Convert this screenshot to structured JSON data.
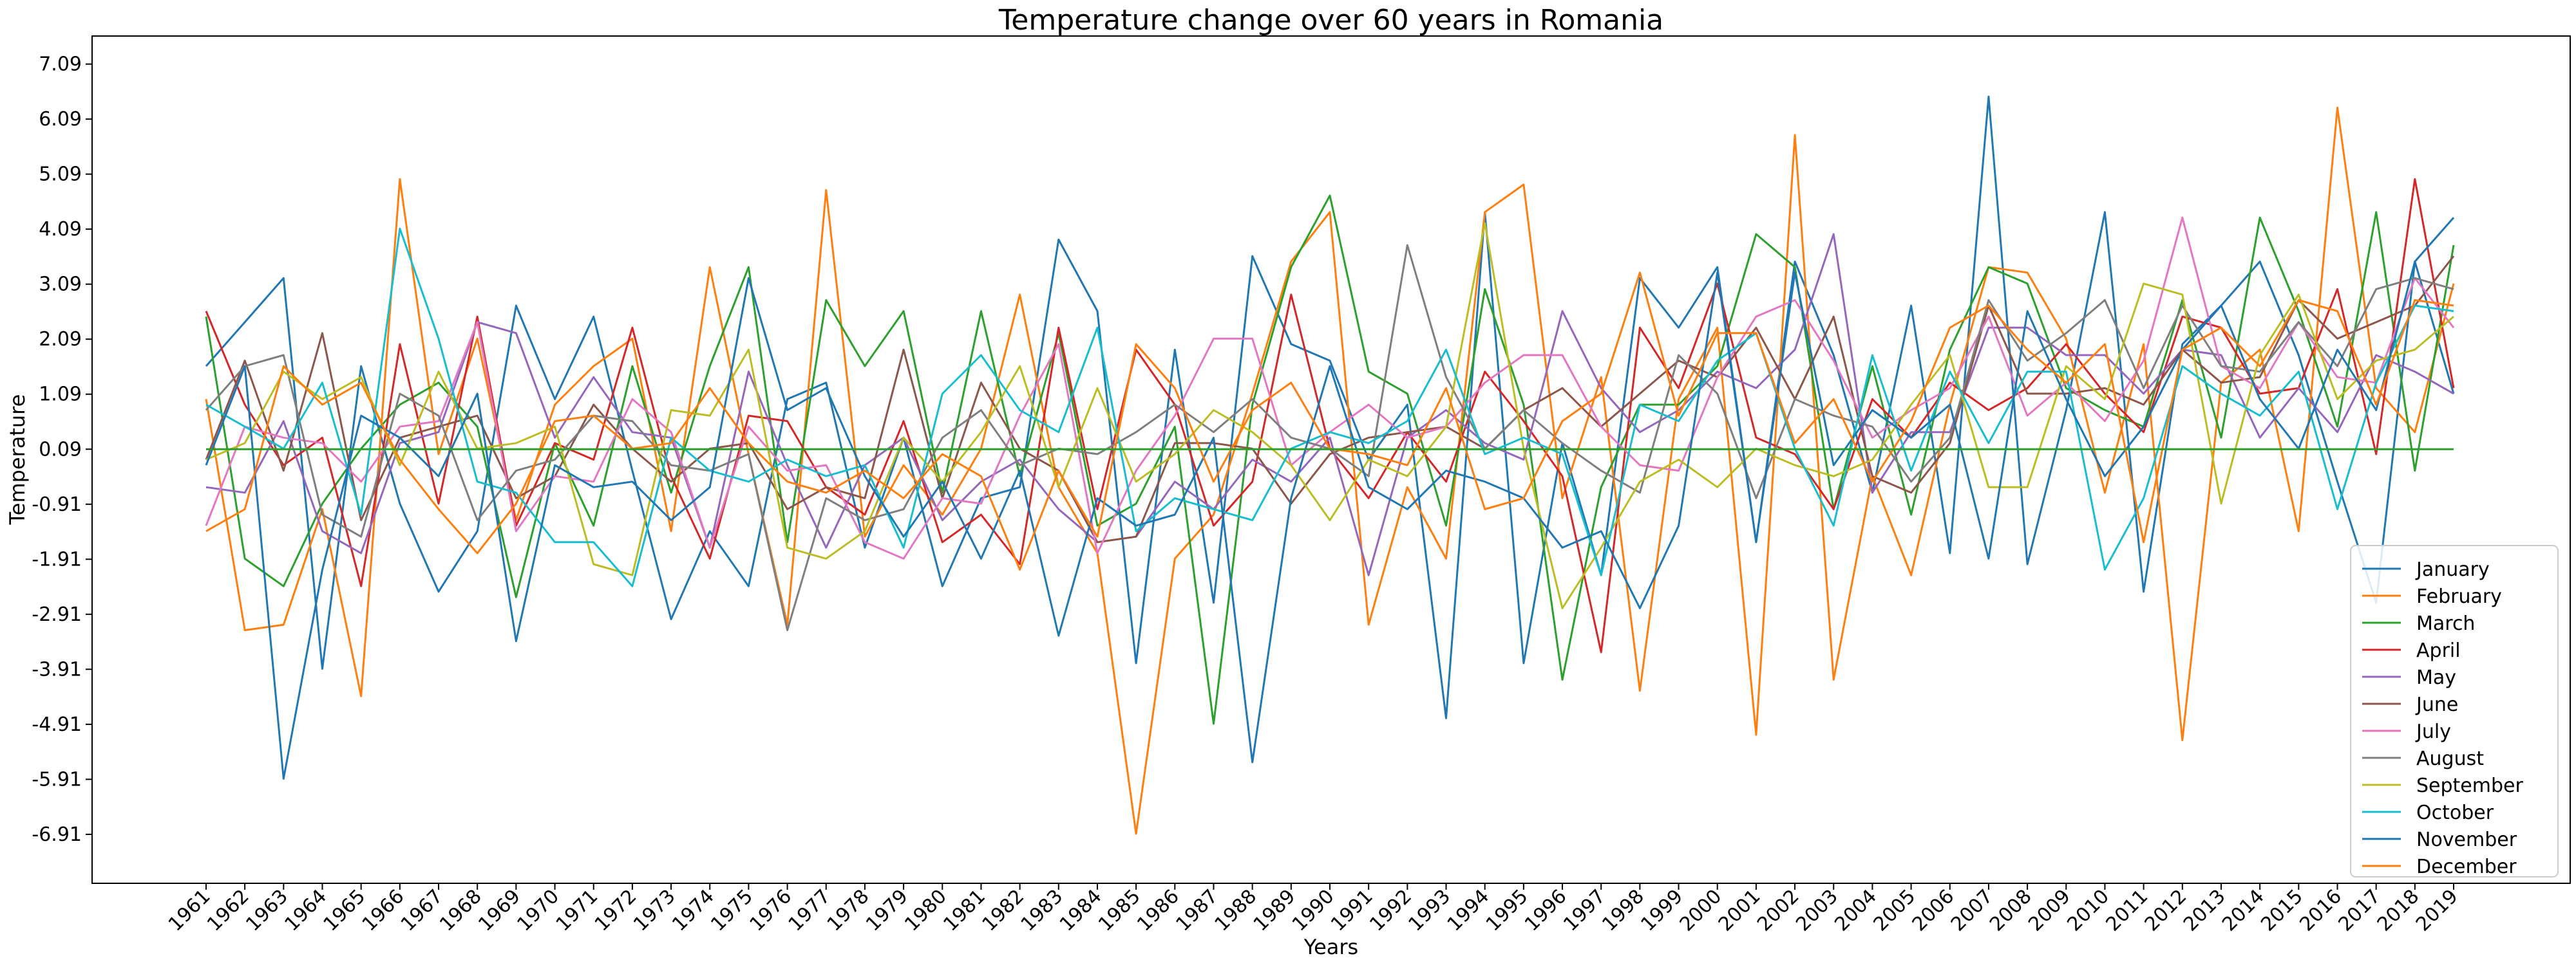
{
  "chart_data": {
    "type": "line",
    "title": "Temperature change over 60 years in Romania",
    "xlabel": "Years",
    "ylabel": "Temperature",
    "yticks": [
      "-6.91",
      "-5.91",
      "-4.91",
      "-3.91",
      "-2.91",
      "-1.91",
      "-0.91",
      "0.09",
      "1.09",
      "2.09",
      "3.09",
      "4.09",
      "5.09",
      "6.09",
      "7.09"
    ],
    "ylim": [
      -7.8,
      7.6
    ],
    "grid": false,
    "legend_position": "bottom-right",
    "x": [
      "1961",
      "1962",
      "1963",
      "1964",
      "1965",
      "1966",
      "1967",
      "1968",
      "1969",
      "1970",
      "1971",
      "1972",
      "1973",
      "1974",
      "1975",
      "1976",
      "1977",
      "1978",
      "1979",
      "1980",
      "1981",
      "1982",
      "1983",
      "1984",
      "1985",
      "1986",
      "1987",
      "1988",
      "1989",
      "1990",
      "1991",
      "1992",
      "1993",
      "1994",
      "1995",
      "1996",
      "1997",
      "1998",
      "1999",
      "2000",
      "2001",
      "2002",
      "2003",
      "2004",
      "2005",
      "2006",
      "2007",
      "2008",
      "2009",
      "2010",
      "2011",
      "2012",
      "2013",
      "2014",
      "2015",
      "2016",
      "2017",
      "2018",
      "2019"
    ],
    "series": [
      {
        "name": "January",
        "color": "#1f77b4",
        "values": [
          1.6,
          2.4,
          3.2,
          -3.9,
          1.6,
          -0.9,
          -2.5,
          -1.4,
          2.7,
          1.0,
          2.5,
          -0.3,
          -3.0,
          -1.4,
          -2.4,
          1.0,
          1.3,
          -1.7,
          0.3,
          -2.4,
          -0.8,
          -0.6,
          3.9,
          2.6,
          -3.8,
          1.9,
          -2.7,
          3.6,
          2.0,
          1.7,
          -0.1,
          0.9,
          -4.8,
          4.4,
          -3.8,
          0.2,
          -2.2,
          3.2,
          2.3,
          3.4,
          -1.6,
          3.5,
          1.8,
          -0.7,
          2.7,
          -1.8,
          6.5,
          -2.0,
          0.8,
          4.4,
          -2.5,
          2.0,
          2.7,
          3.5,
          1.8,
          -0.5,
          -2.7,
          3.5,
          1.1
        ]
      },
      {
        "name": "February",
        "color": "#ff7f0e",
        "values": [
          1.0,
          -3.2,
          -3.1,
          -1.0,
          -4.4,
          5.0,
          0.0,
          2.1,
          -1.2,
          0.9,
          1.6,
          2.1,
          -1.4,
          3.4,
          0.0,
          -3.1,
          4.8,
          -1.5,
          -0.2,
          -1.1,
          0.1,
          2.9,
          -0.6,
          -1.8,
          -6.9,
          -1.9,
          -1.1,
          1.1,
          3.5,
          4.4,
          -3.1,
          -0.6,
          -1.9,
          4.4,
          4.9,
          -0.8,
          1.4,
          -4.3,
          1.0,
          2.3,
          -5.1,
          5.8,
          -4.1,
          -0.4,
          -2.2,
          0.9,
          3.4,
          3.3,
          2.1,
          -0.7,
          2.0,
          -5.2,
          1.3,
          1.9,
          -1.4,
          6.3,
          1.2,
          0.4,
          3.1
        ]
      },
      {
        "name": "March",
        "color": "#2ca02c",
        "values": [
          2.5,
          -1.9,
          -2.4,
          -0.9,
          0.1,
          0.9,
          1.3,
          0.5,
          -2.6,
          0.2,
          -1.3,
          1.6,
          -0.7,
          1.6,
          3.4,
          -1.6,
          2.8,
          1.6,
          2.6,
          -0.7,
          2.6,
          -0.4,
          2.2,
          -1.3,
          -0.9,
          0.5,
          -4.9,
          0.9,
          3.4,
          4.7,
          1.5,
          1.1,
          -1.3,
          3.0,
          0.9,
          -4.1,
          -0.6,
          0.9,
          0.9,
          1.6,
          4.0,
          3.4,
          -1.0,
          1.6,
          -1.1,
          1.9,
          3.4,
          3.1,
          1.2,
          0.8,
          0.5,
          2.8,
          0.3,
          4.3,
          2.6,
          0.5,
          4.4,
          -0.3,
          3.8
        ]
      },
      {
        "name": "April",
        "color": "#d62728",
        "values": [
          2.6,
          0.9,
          -0.2,
          0.3,
          -2.4,
          2.0,
          -0.9,
          2.5,
          -1.3,
          0.2,
          -0.1,
          2.3,
          -0.4,
          -1.9,
          0.7,
          0.6,
          -0.6,
          -1.1,
          0.6,
          -1.6,
          -1.1,
          -2.0,
          2.3,
          -1.0,
          1.9,
          0.9,
          -1.3,
          -0.5,
          2.9,
          0.1,
          -0.8,
          0.4,
          -0.5,
          1.5,
          0.6,
          -0.4,
          -3.6,
          2.3,
          1.2,
          3.1,
          0.3,
          0.0,
          -1.0,
          1.0,
          0.3,
          1.3,
          0.8,
          1.2,
          2.0,
          1.1,
          0.4,
          2.5,
          2.3,
          1.1,
          1.2,
          3.0,
          0.0,
          5.0,
          1.2
        ]
      },
      {
        "name": "May",
        "color": "#9467bd",
        "values": [
          -0.6,
          -0.7,
          0.6,
          -1.4,
          -1.8,
          0.2,
          0.4,
          2.4,
          2.2,
          0.3,
          1.4,
          0.4,
          0.3,
          -1.7,
          1.5,
          -0.2,
          -1.7,
          -0.2,
          0.3,
          -1.2,
          -0.5,
          -0.1,
          -1.0,
          -1.6,
          -1.5,
          -0.5,
          -1.0,
          -0.1,
          -0.5,
          0.3,
          -2.2,
          0.3,
          0.8,
          0.2,
          -0.1,
          2.6,
          1.2,
          0.4,
          0.8,
          1.5,
          1.2,
          1.9,
          4.0,
          -0.7,
          0.4,
          0.4,
          2.3,
          2.3,
          1.8,
          1.8,
          1.1,
          1.9,
          1.8,
          0.3,
          1.2,
          0.4,
          1.8,
          1.5,
          1.1
        ]
      },
      {
        "name": "June",
        "color": "#8c564b",
        "values": [
          -0.1,
          1.7,
          -0.3,
          2.2,
          -1.2,
          0.3,
          0.5,
          0.7,
          -0.8,
          -0.4,
          0.9,
          0.1,
          -0.5,
          0.1,
          0.2,
          -1.0,
          -0.6,
          -0.8,
          1.9,
          -0.8,
          1.3,
          0.1,
          -0.3,
          -1.6,
          -1.5,
          0.2,
          0.2,
          0.1,
          -0.9,
          0.0,
          0.3,
          0.4,
          0.5,
          0.1,
          0.8,
          1.2,
          0.5,
          1.1,
          1.7,
          1.4,
          2.3,
          1.0,
          2.5,
          -0.4,
          -0.7,
          0.2,
          2.7,
          1.1,
          1.1,
          1.2,
          0.9,
          1.9,
          1.3,
          1.4,
          2.8,
          2.1,
          2.4,
          2.7,
          3.6
        ]
      },
      {
        "name": "July",
        "color": "#e377c2",
        "values": [
          -1.3,
          0.5,
          0.3,
          0.2,
          -0.5,
          0.5,
          0.6,
          2.4,
          -1.4,
          -0.4,
          -0.5,
          1.0,
          0.4,
          -1.7,
          0.5,
          -0.3,
          -0.2,
          -1.6,
          -1.9,
          -0.8,
          -0.9,
          0.7,
          2.0,
          -1.8,
          -0.3,
          0.7,
          2.1,
          2.1,
          -0.2,
          0.4,
          0.9,
          0.3,
          0.5,
          1.3,
          1.8,
          1.8,
          0.5,
          -0.2,
          -0.3,
          1.4,
          2.5,
          2.8,
          1.7,
          0.3,
          0.8,
          1.2,
          2.5,
          0.7,
          1.3,
          0.6,
          1.7,
          4.3,
          1.6,
          1.2,
          2.4,
          1.4,
          1.3,
          3.2,
          2.3
        ]
      },
      {
        "name": "August",
        "color": "#7f7f7f",
        "values": [
          0.8,
          1.6,
          1.8,
          -1.1,
          -1.5,
          1.1,
          0.7,
          -1.2,
          -0.3,
          -0.1,
          0.7,
          0.6,
          -0.2,
          -0.3,
          0.0,
          -3.2,
          -0.8,
          -1.2,
          -1.0,
          0.3,
          0.8,
          -0.2,
          0.1,
          0.0,
          0.4,
          0.9,
          0.4,
          1.0,
          0.3,
          0.1,
          -0.4,
          3.8,
          1.4,
          0.1,
          0.8,
          0.2,
          -0.3,
          -0.7,
          1.8,
          1.1,
          -0.8,
          1.0,
          0.7,
          0.5,
          -0.5,
          0.3,
          2.8,
          1.7,
          2.2,
          2.8,
          1.2,
          2.7,
          1.6,
          1.5,
          2.4,
          1.6,
          3.0,
          3.2,
          3.0
        ]
      },
      {
        "name": "September",
        "color": "#bcbd22",
        "values": [
          -0.1,
          0.2,
          1.5,
          1.0,
          1.4,
          -0.2,
          1.5,
          0.1,
          0.2,
          0.5,
          -2.0,
          -2.2,
          0.8,
          0.7,
          1.9,
          -1.7,
          -1.9,
          -1.4,
          0.3,
          -0.5,
          0.4,
          1.6,
          -0.6,
          1.2,
          -0.5,
          0.0,
          0.8,
          0.4,
          -0.2,
          -1.2,
          -0.1,
          -0.4,
          0.5,
          4.2,
          0.1,
          -2.8,
          -1.7,
          -0.5,
          -0.1,
          -0.6,
          0.1,
          -0.2,
          -0.4,
          -0.1,
          0.9,
          1.8,
          -0.6,
          -0.6,
          1.6,
          1.0,
          3.1,
          2.9,
          -0.9,
          1.8,
          2.9,
          1.0,
          1.7,
          1.9,
          2.5
        ]
      },
      {
        "name": "October",
        "color": "#17becf",
        "values": [
          0.9,
          0.5,
          0.1,
          1.3,
          -1.1,
          4.1,
          2.1,
          -0.5,
          -0.7,
          -1.6,
          -1.6,
          -2.4,
          0.3,
          -0.3,
          -0.5,
          -0.1,
          -0.4,
          -0.2,
          -1.7,
          1.1,
          1.8,
          0.8,
          0.4,
          2.3,
          -1.4,
          -0.8,
          -1.0,
          -1.2,
          0.1,
          0.4,
          0.2,
          0.6,
          1.9,
          0.0,
          0.3,
          0.0,
          -2.2,
          0.9,
          0.6,
          1.7,
          2.2,
          0.1,
          -1.3,
          1.8,
          -0.3,
          1.5,
          0.2,
          1.5,
          1.5,
          -2.1,
          -0.8,
          1.6,
          1.1,
          0.7,
          1.5,
          -1.0,
          1.3,
          2.7,
          2.6
        ]
      },
      {
        "name": "November",
        "color": "#1f77b4",
        "values": [
          -0.2,
          1.6,
          -5.9,
          -2.1,
          0.7,
          0.3,
          -0.4,
          1.1,
          -3.4,
          -0.2,
          -0.6,
          -0.5,
          -1.2,
          -0.6,
          3.2,
          0.8,
          1.2,
          -0.4,
          -1.5,
          -0.5,
          -1.9,
          -0.3,
          -3.3,
          -0.8,
          -1.3,
          -1.1,
          0.3,
          -5.6,
          -0.8,
          1.6,
          -0.6,
          -1.0,
          -0.3,
          -0.5,
          -0.8,
          -1.7,
          -1.4,
          -2.8,
          -1.3,
          3.3,
          -1.6,
          3.3,
          -0.2,
          0.8,
          0.3,
          0.9,
          -1.9,
          2.6,
          1.0,
          -0.4,
          0.5,
          1.9,
          2.7,
          1.0,
          0.1,
          1.9,
          0.8,
          3.5,
          4.3
        ]
      },
      {
        "name": "December",
        "color": "#ff7f0e",
        "values": [
          -1.4,
          -1.0,
          1.6,
          0.9,
          1.3,
          -0.1,
          -1.0,
          -1.8,
          -0.9,
          0.6,
          0.7,
          0.1,
          0.2,
          1.2,
          0.2,
          -0.5,
          -0.7,
          -0.3,
          -0.8,
          0.0,
          -0.4,
          -2.1,
          -0.3,
          -1.5,
          2.0,
          1.2,
          -0.5,
          0.8,
          1.3,
          0.1,
          0.0,
          -0.2,
          1.2,
          -1.0,
          -0.8,
          0.6,
          1.1,
          3.3,
          0.7,
          2.2,
          2.2,
          0.2,
          1.0,
          -0.5,
          0.6,
          2.3,
          2.7,
          1.9,
          1.3,
          2.0,
          -1.6,
          1.9,
          2.3,
          1.6,
          2.8,
          2.6,
          0.9,
          2.8,
          2.7
        ]
      },
      {
        "name": "",
        "color": "#2ca02c",
        "values": [
          0.09,
          0.09,
          0.09,
          0.09,
          0.09,
          0.09,
          0.09,
          0.09,
          0.09,
          0.09,
          0.09,
          0.09,
          0.09,
          0.09,
          0.09,
          0.09,
          0.09,
          0.09,
          0.09,
          0.09,
          0.09,
          0.09,
          0.09,
          0.09,
          0.09,
          0.09,
          0.09,
          0.09,
          0.09,
          0.09,
          0.09,
          0.09,
          0.09,
          0.09,
          0.09,
          0.09,
          0.09,
          0.09,
          0.09,
          0.09,
          0.09,
          0.09,
          0.09,
          0.09,
          0.09,
          0.09,
          0.09,
          0.09,
          0.09,
          0.09,
          0.09,
          0.09,
          0.09,
          0.09,
          0.09,
          0.09,
          0.09,
          0.09,
          0.09
        ]
      }
    ]
  }
}
